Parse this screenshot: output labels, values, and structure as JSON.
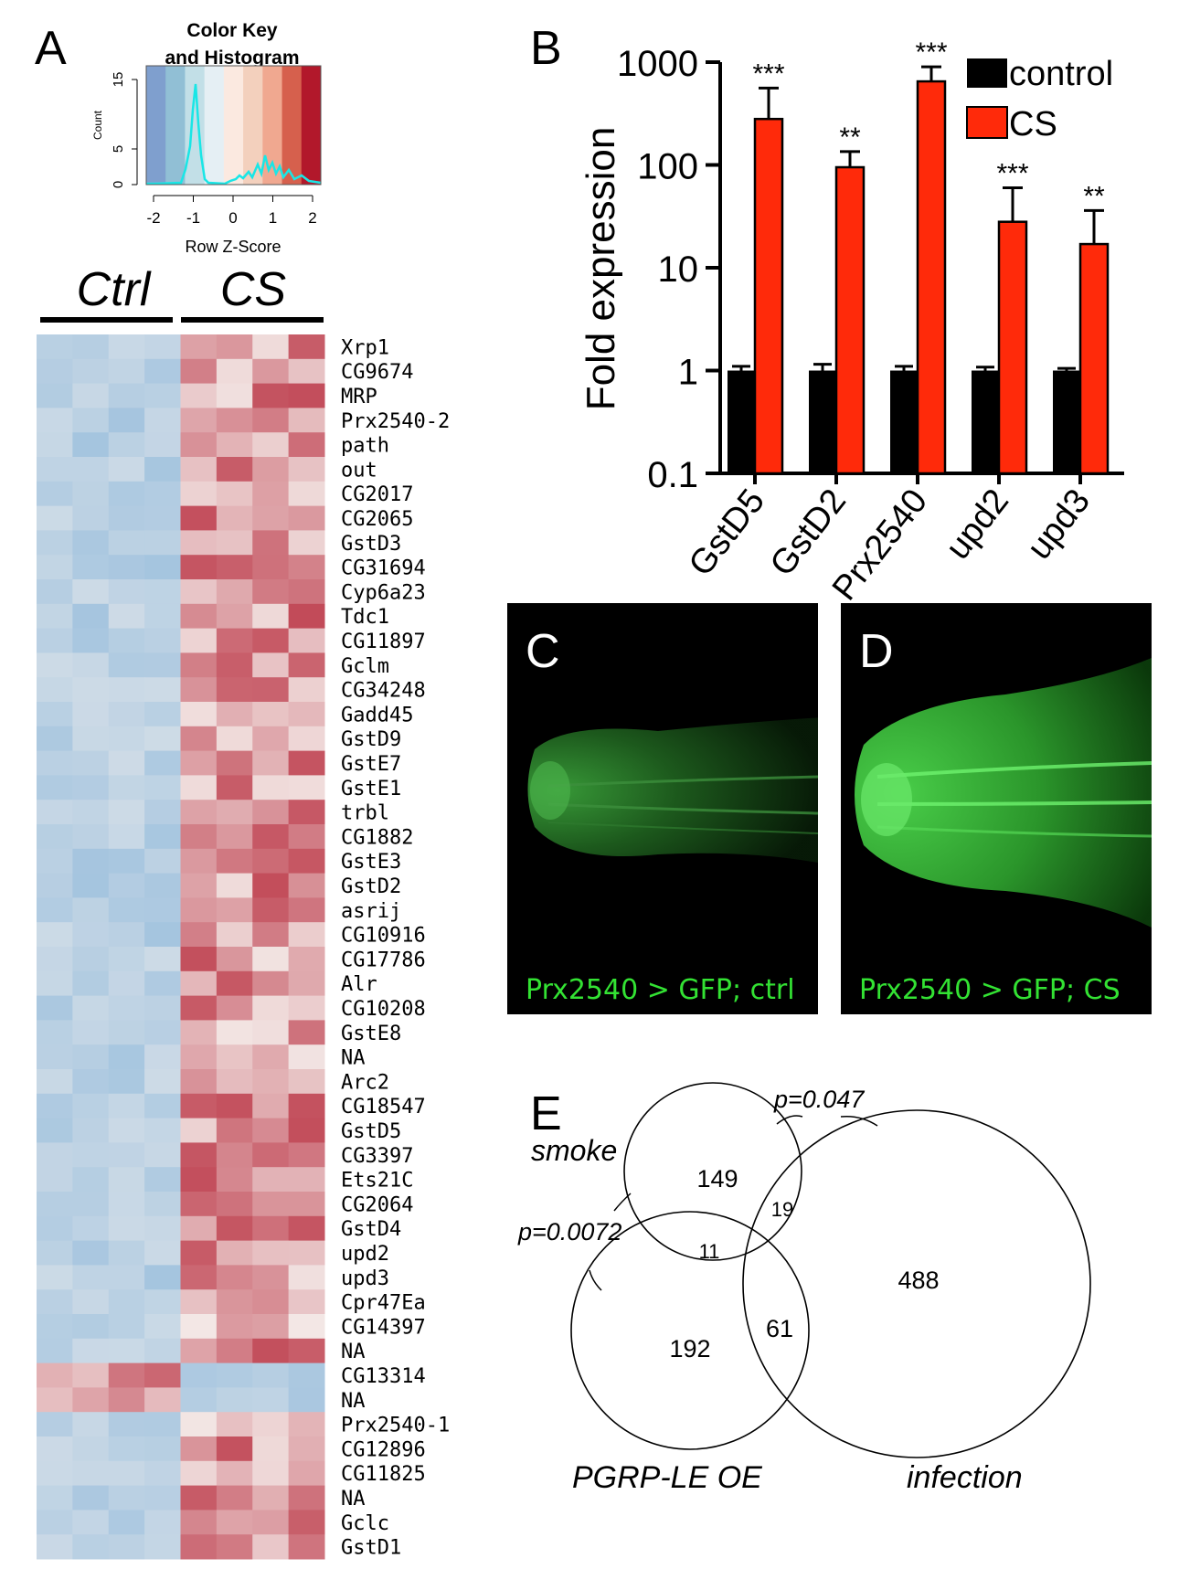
{
  "panels": {
    "a": "A",
    "b": "B",
    "c": "C",
    "d": "D",
    "e": "E"
  },
  "colors": {
    "control": "#000000",
    "cs": "#ff2a0a",
    "gfp": "#33e233",
    "histogram_line": "#19e6e6",
    "heat_low": "#7fb0d8",
    "heat_mid": "#f6f1ee",
    "heat_high": "#b2182b"
  },
  "heatmap": {
    "color_key": {
      "title_line1": "Color Key",
      "title_line2": "and Histogram",
      "ylabel": "Count",
      "yticks": [
        "0",
        "5",
        "15"
      ],
      "xticks": [
        "-2",
        "-1",
        "0",
        "1",
        "2"
      ],
      "xlabel": "Row Z-Score",
      "band_colors": [
        "#7f9fce",
        "#91bfd5",
        "#c2dfe7",
        "#e5eff4",
        "#fbe9e0",
        "#f3d0bd",
        "#f0a890",
        "#d6604d",
        "#b2182b"
      ]
    },
    "group_labels": [
      "Ctrl",
      "CS"
    ],
    "genes": [
      "Xrp1",
      "CG9674",
      "MRP",
      "Prx2540-2",
      "path",
      "out",
      "CG2017",
      "CG2065",
      "GstD3",
      "CG31694",
      "Cyp6a23",
      "Tdc1",
      "CG11897",
      "Gclm",
      "CG34248",
      "Gadd45",
      "GstD9",
      "GstE7",
      "GstE1",
      "trbl",
      "CG1882",
      "GstE3",
      "GstD2",
      "asrij",
      "CG10916",
      "CG17786",
      "Alr",
      "CG10208",
      "GstE8",
      "NA",
      "Arc2",
      "CG18547",
      "GstD5",
      "CG3397",
      "Ets21C",
      "CG2064",
      "GstD4",
      "upd2",
      "upd3",
      "Cpr47Ea",
      "CG14397",
      "NA",
      "CG13314",
      "NA",
      "Prx2540-1",
      "CG12896",
      "CG11825",
      "NA",
      "Gclc",
      "GstD1"
    ]
  },
  "chart_data": [
    {
      "type": "bar",
      "panel": "B",
      "ylabel": "Fold expression",
      "yscale": "log",
      "ylim": [
        0.1,
        1000
      ],
      "yticks": [
        "0.1",
        "1",
        "10",
        "100",
        "1000"
      ],
      "categories": [
        "GstD5",
        "GstD2",
        "Prx2540",
        "upd2",
        "upd3"
      ],
      "series": [
        {
          "name": "control",
          "values": [
            1,
            1,
            1,
            1,
            1
          ],
          "error_upper": [
            1.1,
            1.15,
            1.1,
            1.08,
            1.05
          ]
        },
        {
          "name": "CS",
          "values": [
            280,
            95,
            650,
            28,
            17
          ],
          "error_upper": [
            560,
            135,
            900,
            60,
            36
          ]
        }
      ],
      "significance": [
        "***",
        "**",
        "***",
        "***",
        "**"
      ],
      "legend_position": "top-right"
    }
  ],
  "micrographs": {
    "c_label": "Prx2540 > GFP; ctrl",
    "d_label": "Prx2540 > GFP; CS"
  },
  "venn": {
    "sets": [
      "smoke",
      "PGRP-LE OE",
      "infection"
    ],
    "counts": {
      "smoke_only": "149",
      "pgrp_only": "192",
      "infection_only": "488",
      "smoke_pgrp": "11",
      "smoke_infection": "19",
      "pgrp_infection": "61"
    },
    "p_smoke_infection": "p=0.047",
    "p_smoke_pgrp": "p=0.0072"
  }
}
